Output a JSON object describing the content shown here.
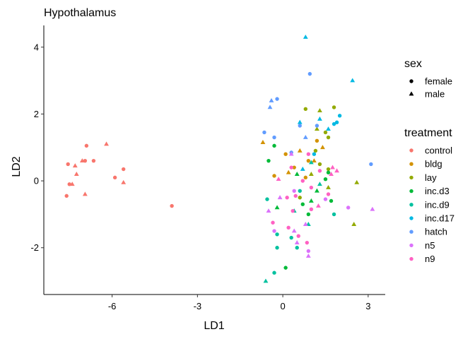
{
  "chart_data": {
    "type": "scatter",
    "title": "Hypothalamus",
    "xlabel": "LD1",
    "ylabel": "LD2",
    "xlim": [
      -8.4,
      3.6
    ],
    "ylim": [
      -3.4,
      4.65
    ],
    "xticks": [
      -6,
      -3,
      0,
      3
    ],
    "xtick_labels": [
      "-6",
      "-3",
      "0",
      "3"
    ],
    "yticks": [
      -2,
      0,
      2,
      4
    ],
    "ytick_labels": [
      "-2",
      "0",
      "2",
      "4"
    ],
    "grid": false,
    "legend_placement": "right",
    "legend": {
      "shape_title": "sex",
      "shape_items": [
        {
          "label": "female",
          "shape": "circle"
        },
        {
          "label": "male",
          "shape": "triangle"
        }
      ],
      "color_title": "treatment",
      "color_items": [
        {
          "label": "control",
          "color": "#F8766D"
        },
        {
          "label": "bldg",
          "color": "#D39200"
        },
        {
          "label": "lay",
          "color": "#93AA00"
        },
        {
          "label": "inc.d3",
          "color": "#00BA38"
        },
        {
          "label": "inc.d9",
          "color": "#00C19F"
        },
        {
          "label": "inc.d17",
          "color": "#00B9E3"
        },
        {
          "label": "hatch",
          "color": "#619CFF"
        },
        {
          "label": "n5",
          "color": "#DB72FB"
        },
        {
          "label": "n9",
          "color": "#FF61C3"
        }
      ]
    },
    "points": [
      {
        "x": -7.6,
        "y": -0.45,
        "sex": "female",
        "treatment": "control"
      },
      {
        "x": -7.55,
        "y": 0.5,
        "sex": "female",
        "treatment": "control"
      },
      {
        "x": -7.5,
        "y": -0.1,
        "sex": "female",
        "treatment": "control"
      },
      {
        "x": -7.4,
        "y": -0.1,
        "sex": "male",
        "treatment": "control"
      },
      {
        "x": -7.3,
        "y": 0.45,
        "sex": "male",
        "treatment": "control"
      },
      {
        "x": -7.25,
        "y": 0.2,
        "sex": "male",
        "treatment": "control"
      },
      {
        "x": -7.05,
        "y": 0.6,
        "sex": "male",
        "treatment": "control"
      },
      {
        "x": -6.95,
        "y": 0.6,
        "sex": "female",
        "treatment": "control"
      },
      {
        "x": -6.9,
        "y": 1.05,
        "sex": "female",
        "treatment": "control"
      },
      {
        "x": -6.95,
        "y": -0.4,
        "sex": "male",
        "treatment": "control"
      },
      {
        "x": -6.65,
        "y": 0.6,
        "sex": "female",
        "treatment": "control"
      },
      {
        "x": -6.2,
        "y": 1.1,
        "sex": "male",
        "treatment": "control"
      },
      {
        "x": -5.9,
        "y": 0.1,
        "sex": "female",
        "treatment": "control"
      },
      {
        "x": -5.6,
        "y": 0.35,
        "sex": "female",
        "treatment": "control"
      },
      {
        "x": -5.6,
        "y": -0.05,
        "sex": "male",
        "treatment": "control"
      },
      {
        "x": -3.9,
        "y": -0.75,
        "sex": "female",
        "treatment": "control"
      },
      {
        "x": -0.7,
        "y": 1.15,
        "sex": "male",
        "treatment": "bldg"
      },
      {
        "x": -0.3,
        "y": 0.15,
        "sex": "female",
        "treatment": "bldg"
      },
      {
        "x": 0.1,
        "y": 0.8,
        "sex": "female",
        "treatment": "bldg"
      },
      {
        "x": 0.2,
        "y": 0.25,
        "sex": "male",
        "treatment": "bldg"
      },
      {
        "x": 0.4,
        "y": 0.4,
        "sex": "female",
        "treatment": "bldg"
      },
      {
        "x": 0.6,
        "y": 0.9,
        "sex": "male",
        "treatment": "bldg"
      },
      {
        "x": 0.8,
        "y": 0.1,
        "sex": "female",
        "treatment": "bldg"
      },
      {
        "x": 1.1,
        "y": 0.6,
        "sex": "male",
        "treatment": "bldg"
      },
      {
        "x": 1.2,
        "y": 1.2,
        "sex": "female",
        "treatment": "bldg"
      },
      {
        "x": 1.4,
        "y": 1.0,
        "sex": "male",
        "treatment": "bldg"
      },
      {
        "x": 0.9,
        "y": 0.6,
        "sex": "female",
        "treatment": "bldg"
      },
      {
        "x": 0.8,
        "y": 2.15,
        "sex": "female",
        "treatment": "lay"
      },
      {
        "x": 1.2,
        "y": 1.55,
        "sex": "male",
        "treatment": "lay"
      },
      {
        "x": 1.3,
        "y": 2.1,
        "sex": "male",
        "treatment": "lay"
      },
      {
        "x": 1.5,
        "y": 1.45,
        "sex": "female",
        "treatment": "lay"
      },
      {
        "x": 1.6,
        "y": 1.3,
        "sex": "female",
        "treatment": "lay"
      },
      {
        "x": 1.8,
        "y": 2.2,
        "sex": "female",
        "treatment": "lay"
      },
      {
        "x": 1.15,
        "y": 0.9,
        "sex": "female",
        "treatment": "lay"
      },
      {
        "x": 1.0,
        "y": 0.2,
        "sex": "male",
        "treatment": "lay"
      },
      {
        "x": 1.3,
        "y": 0.5,
        "sex": "female",
        "treatment": "lay"
      },
      {
        "x": 1.6,
        "y": -0.2,
        "sex": "male",
        "treatment": "lay"
      },
      {
        "x": 1.6,
        "y": 0.35,
        "sex": "female",
        "treatment": "lay"
      },
      {
        "x": 2.6,
        "y": -0.05,
        "sex": "male",
        "treatment": "lay"
      },
      {
        "x": 2.5,
        "y": -1.3,
        "sex": "male",
        "treatment": "lay"
      },
      {
        "x": 0.6,
        "y": -0.5,
        "sex": "female",
        "treatment": "lay"
      },
      {
        "x": -0.3,
        "y": 1.05,
        "sex": "female",
        "treatment": "inc.d3"
      },
      {
        "x": -0.5,
        "y": 0.6,
        "sex": "female",
        "treatment": "inc.d3"
      },
      {
        "x": -0.2,
        "y": -0.8,
        "sex": "male",
        "treatment": "inc.d3"
      },
      {
        "x": 0.1,
        "y": -2.6,
        "sex": "female",
        "treatment": "inc.d3"
      },
      {
        "x": 0.5,
        "y": 0.2,
        "sex": "male",
        "treatment": "inc.d3"
      },
      {
        "x": 0.7,
        "y": -0.7,
        "sex": "female",
        "treatment": "inc.d3"
      },
      {
        "x": 1.0,
        "y": -0.6,
        "sex": "male",
        "treatment": "inc.d3"
      },
      {
        "x": 1.5,
        "y": 0.05,
        "sex": "female",
        "treatment": "inc.d3"
      },
      {
        "x": 1.6,
        "y": 0.25,
        "sex": "female",
        "treatment": "inc.d3"
      },
      {
        "x": 1.7,
        "y": -0.6,
        "sex": "female",
        "treatment": "inc.d3"
      },
      {
        "x": 1.2,
        "y": -0.3,
        "sex": "male",
        "treatment": "inc.d3"
      },
      {
        "x": 0.9,
        "y": -1.0,
        "sex": "female",
        "treatment": "inc.d3"
      },
      {
        "x": -0.6,
        "y": -3.0,
        "sex": "male",
        "treatment": "inc.d9"
      },
      {
        "x": -0.3,
        "y": -2.75,
        "sex": "female",
        "treatment": "inc.d9"
      },
      {
        "x": -0.2,
        "y": -2.0,
        "sex": "female",
        "treatment": "inc.d9"
      },
      {
        "x": -0.2,
        "y": -1.6,
        "sex": "female",
        "treatment": "inc.d9"
      },
      {
        "x": -0.55,
        "y": -0.55,
        "sex": "female",
        "treatment": "inc.d9"
      },
      {
        "x": 0.3,
        "y": -1.7,
        "sex": "female",
        "treatment": "inc.d9"
      },
      {
        "x": 0.4,
        "y": -0.9,
        "sex": "male",
        "treatment": "inc.d9"
      },
      {
        "x": 0.5,
        "y": -2.0,
        "sex": "female",
        "treatment": "inc.d9"
      },
      {
        "x": 0.9,
        "y": -1.3,
        "sex": "male",
        "treatment": "inc.d9"
      },
      {
        "x": 1.0,
        "y": 0.55,
        "sex": "male",
        "treatment": "inc.d9"
      },
      {
        "x": 1.3,
        "y": -0.1,
        "sex": "male",
        "treatment": "inc.d9"
      },
      {
        "x": 1.8,
        "y": -1.0,
        "sex": "female",
        "treatment": "inc.d9"
      },
      {
        "x": 0.6,
        "y": -0.3,
        "sex": "female",
        "treatment": "inc.d9"
      },
      {
        "x": 0.8,
        "y": 4.3,
        "sex": "male",
        "treatment": "inc.d17"
      },
      {
        "x": 2.45,
        "y": 3.0,
        "sex": "male",
        "treatment": "inc.d17"
      },
      {
        "x": 2.0,
        "y": 1.95,
        "sex": "female",
        "treatment": "inc.d17"
      },
      {
        "x": 1.9,
        "y": 1.75,
        "sex": "female",
        "treatment": "inc.d17"
      },
      {
        "x": 1.8,
        "y": 1.7,
        "sex": "female",
        "treatment": "inc.d17"
      },
      {
        "x": 1.6,
        "y": 1.55,
        "sex": "male",
        "treatment": "inc.d17"
      },
      {
        "x": 1.3,
        "y": 1.85,
        "sex": "male",
        "treatment": "inc.d17"
      },
      {
        "x": 0.6,
        "y": 1.75,
        "sex": "male",
        "treatment": "inc.d17"
      },
      {
        "x": 1.1,
        "y": 0.8,
        "sex": "female",
        "treatment": "inc.d17"
      },
      {
        "x": 0.7,
        "y": 0.35,
        "sex": "male",
        "treatment": "inc.d17"
      },
      {
        "x": 0.95,
        "y": 3.2,
        "sex": "female",
        "treatment": "hatch"
      },
      {
        "x": -0.4,
        "y": 2.4,
        "sex": "male",
        "treatment": "hatch"
      },
      {
        "x": -0.2,
        "y": 2.45,
        "sex": "female",
        "treatment": "hatch"
      },
      {
        "x": -0.45,
        "y": 2.2,
        "sex": "male",
        "treatment": "hatch"
      },
      {
        "x": -0.3,
        "y": 1.3,
        "sex": "female",
        "treatment": "hatch"
      },
      {
        "x": -0.65,
        "y": 1.45,
        "sex": "female",
        "treatment": "hatch"
      },
      {
        "x": 0.6,
        "y": 1.65,
        "sex": "female",
        "treatment": "hatch"
      },
      {
        "x": 1.2,
        "y": 1.65,
        "sex": "female",
        "treatment": "hatch"
      },
      {
        "x": 0.3,
        "y": 0.85,
        "sex": "female",
        "treatment": "hatch"
      },
      {
        "x": 3.1,
        "y": 0.5,
        "sex": "female",
        "treatment": "hatch"
      },
      {
        "x": 0.8,
        "y": 1.3,
        "sex": "male",
        "treatment": "hatch"
      },
      {
        "x": 3.15,
        "y": -0.85,
        "sex": "male",
        "treatment": "n5"
      },
      {
        "x": 2.3,
        "y": -0.8,
        "sex": "female",
        "treatment": "n5"
      },
      {
        "x": 1.5,
        "y": -0.55,
        "sex": "female",
        "treatment": "n5"
      },
      {
        "x": 0.8,
        "y": -1.3,
        "sex": "male",
        "treatment": "n5"
      },
      {
        "x": 0.4,
        "y": -1.5,
        "sex": "male",
        "treatment": "n5"
      },
      {
        "x": 0.5,
        "y": -1.85,
        "sex": "male",
        "treatment": "n5"
      },
      {
        "x": -0.5,
        "y": -0.9,
        "sex": "male",
        "treatment": "n5"
      },
      {
        "x": -0.3,
        "y": -1.5,
        "sex": "female",
        "treatment": "n5"
      },
      {
        "x": 0.9,
        "y": -2.1,
        "sex": "female",
        "treatment": "n5"
      },
      {
        "x": 0.9,
        "y": -2.25,
        "sex": "male",
        "treatment": "n5"
      },
      {
        "x": 0.4,
        "y": -0.3,
        "sex": "female",
        "treatment": "n5"
      },
      {
        "x": -0.1,
        "y": -0.5,
        "sex": "male",
        "treatment": "n5"
      },
      {
        "x": 0.3,
        "y": 0.8,
        "sex": "male",
        "treatment": "n5"
      },
      {
        "x": -0.35,
        "y": -1.25,
        "sex": "female",
        "treatment": "n9"
      },
      {
        "x": 0.2,
        "y": -1.4,
        "sex": "female",
        "treatment": "n9"
      },
      {
        "x": 0.55,
        "y": -1.65,
        "sex": "female",
        "treatment": "n9"
      },
      {
        "x": 0.85,
        "y": -1.85,
        "sex": "female",
        "treatment": "n9"
      },
      {
        "x": 0.35,
        "y": -0.9,
        "sex": "female",
        "treatment": "n9"
      },
      {
        "x": 0.15,
        "y": -0.5,
        "sex": "female",
        "treatment": "n9"
      },
      {
        "x": 0.45,
        "y": -0.45,
        "sex": "female",
        "treatment": "n9"
      },
      {
        "x": 0.7,
        "y": 0.0,
        "sex": "female",
        "treatment": "n9"
      },
      {
        "x": 1.0,
        "y": -0.2,
        "sex": "female",
        "treatment": "n9"
      },
      {
        "x": 1.25,
        "y": -0.75,
        "sex": "male",
        "treatment": "n9"
      },
      {
        "x": 1.6,
        "y": -0.4,
        "sex": "female",
        "treatment": "n9"
      },
      {
        "x": 1.75,
        "y": 0.4,
        "sex": "male",
        "treatment": "n9"
      },
      {
        "x": 1.9,
        "y": 0.3,
        "sex": "male",
        "treatment": "n9"
      },
      {
        "x": 1.3,
        "y": 0.3,
        "sex": "female",
        "treatment": "n9"
      },
      {
        "x": 1.7,
        "y": 0.2,
        "sex": "male",
        "treatment": "n9"
      },
      {
        "x": 0.9,
        "y": 0.8,
        "sex": "female",
        "treatment": "n9"
      },
      {
        "x": 0.3,
        "y": 0.4,
        "sex": "female",
        "treatment": "n9"
      },
      {
        "x": -0.15,
        "y": 0.05,
        "sex": "male",
        "treatment": "n9"
      },
      {
        "x": 1.0,
        "y": -0.85,
        "sex": "female",
        "treatment": "n9"
      }
    ]
  }
}
